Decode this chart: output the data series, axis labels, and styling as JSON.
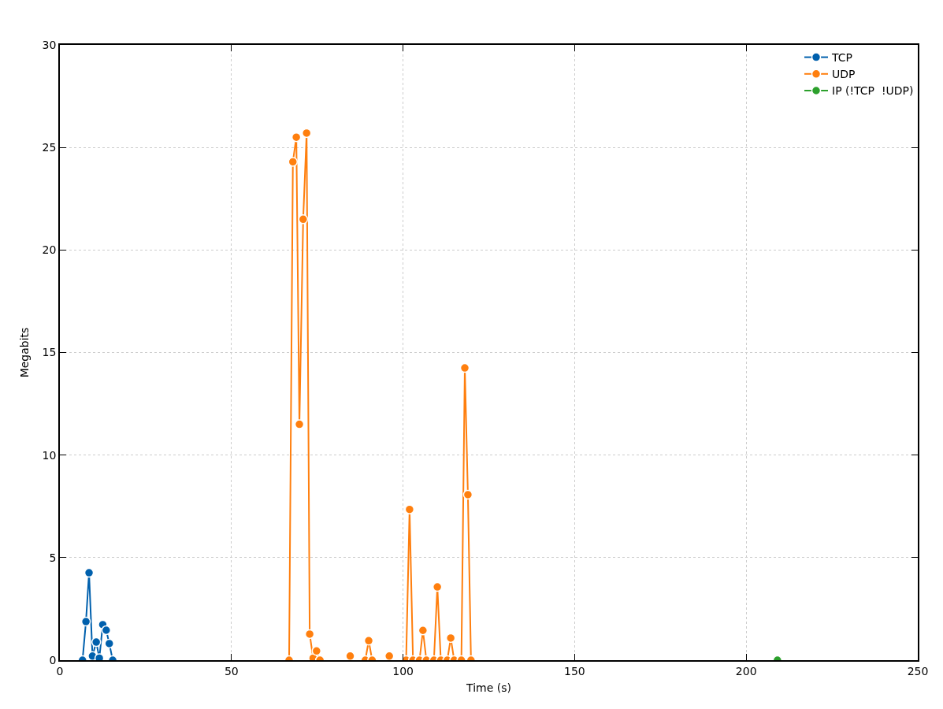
{
  "chart_data": {
    "type": "line",
    "xlabel": "Time (s)",
    "ylabel": "Megabits",
    "xlim": [
      0,
      250
    ],
    "xticks": [
      0,
      50,
      100,
      150,
      200,
      250
    ],
    "ylim": [
      0,
      30
    ],
    "yticks": [
      0,
      5,
      10,
      15,
      20,
      25,
      30
    ],
    "grid": true,
    "legend": "top right",
    "marker": "circle",
    "line_style": "solid",
    "series": [
      {
        "name": "TCP",
        "color": "#0060ad",
        "x": [
          6.6,
          7.6,
          8.5,
          9.5,
          10.6,
          11.5,
          12.5,
          13.5,
          14.4,
          15.4
        ],
        "values": [
          0,
          1.88,
          4.26,
          0.2,
          0.88,
          0.1,
          1.73,
          1.46,
          0.81,
          0
        ]
      },
      {
        "name": "UDP",
        "color": "#ff7f0e",
        "x": [
          66.8,
          67.9,
          68.9,
          69.8,
          70.9,
          71.9,
          72.8,
          73.8,
          74.8,
          75.8,
          null,
          84.6,
          null,
          89,
          90,
          91,
          null,
          96,
          null,
          100.9,
          101.9,
          102.9,
          null,
          104.8,
          105.8,
          106.8,
          null,
          109,
          110,
          111,
          null,
          112.9,
          113.9,
          114.9,
          null,
          117,
          118,
          118.9,
          119.8
        ],
        "values": [
          0,
          24.3,
          25.5,
          11.5,
          21.5,
          25.7,
          1.27,
          0.1,
          0.45,
          0,
          null,
          0.2,
          null,
          0,
          0.95,
          0,
          null,
          0.2,
          null,
          0,
          7.35,
          0,
          null,
          0,
          1.45,
          0,
          null,
          0,
          3.57,
          0,
          null,
          0,
          1.08,
          0,
          null,
          0,
          14.25,
          8.07,
          0
        ]
      },
      {
        "name": "IP (!TCP  !UDP)",
        "color": "#2ca02c",
        "x": [
          209.1
        ],
        "values": [
          0
        ]
      }
    ]
  }
}
